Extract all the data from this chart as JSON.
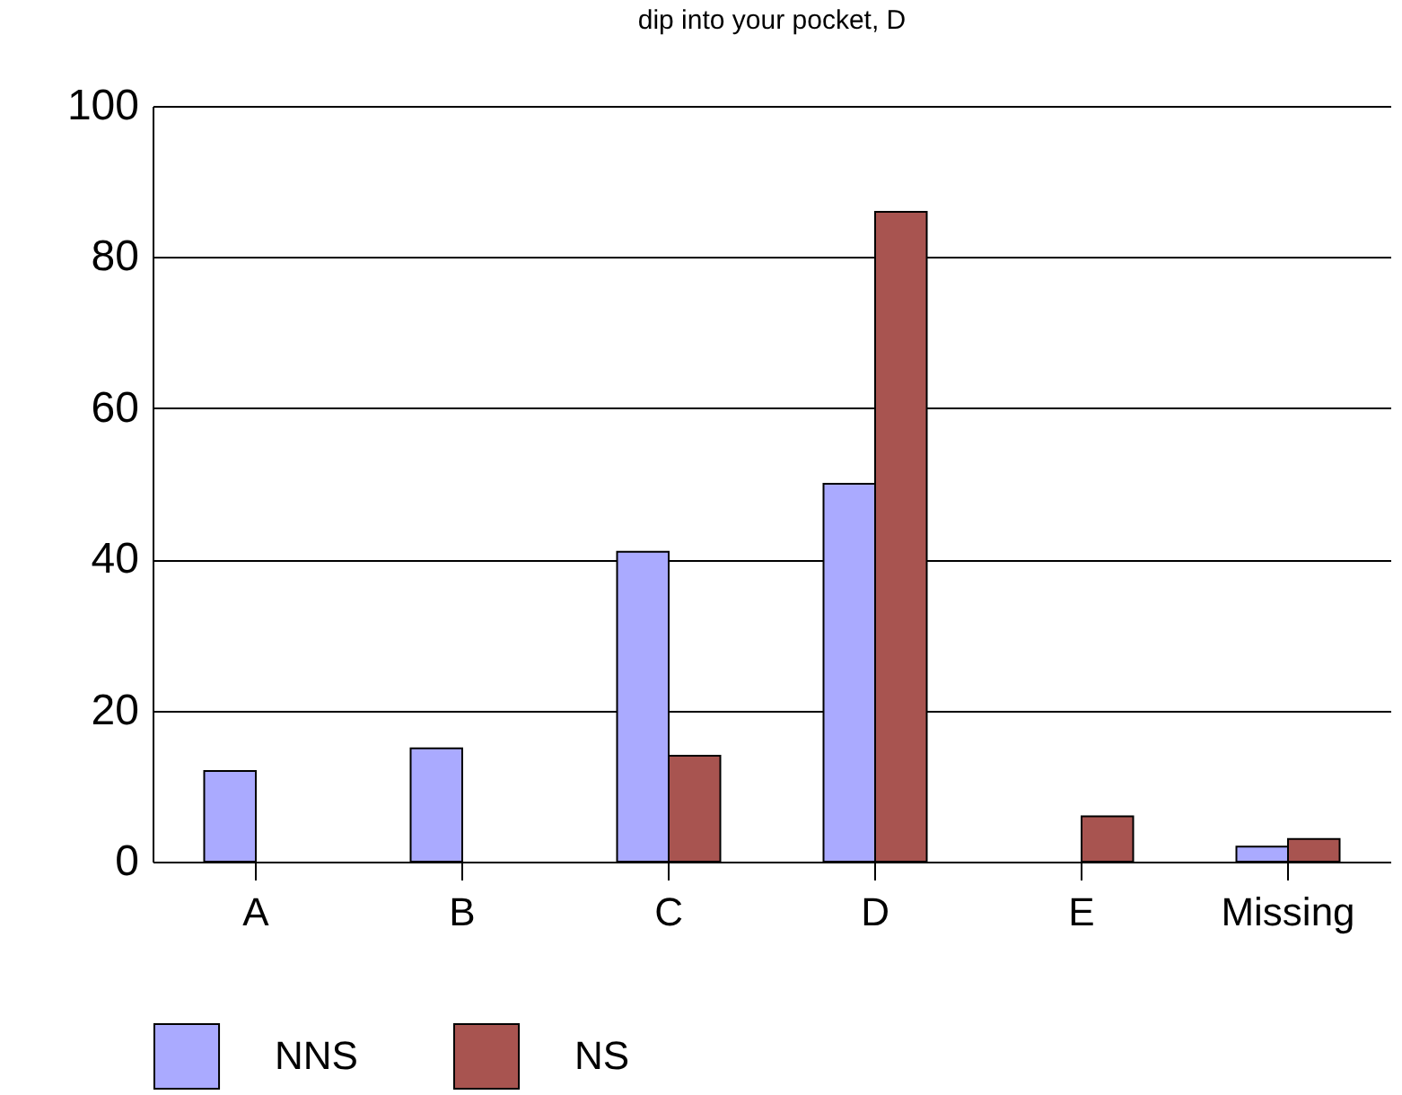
{
  "chart_data": {
    "type": "bar",
    "title": "dip into your pocket, D",
    "categories": [
      "A",
      "B",
      "C",
      "D",
      "E",
      "Missing"
    ],
    "series": [
      {
        "name": "NNS",
        "color": "#aaaaff",
        "values": [
          12,
          15,
          41,
          50,
          null,
          2
        ]
      },
      {
        "name": "NS",
        "color": "#a85450",
        "values": [
          null,
          null,
          14,
          86,
          6,
          3
        ]
      }
    ],
    "ylim": [
      0,
      100
    ],
    "yticks": [
      0,
      20,
      40,
      60,
      80,
      100
    ],
    "grid": "y",
    "legend": "bottom"
  }
}
